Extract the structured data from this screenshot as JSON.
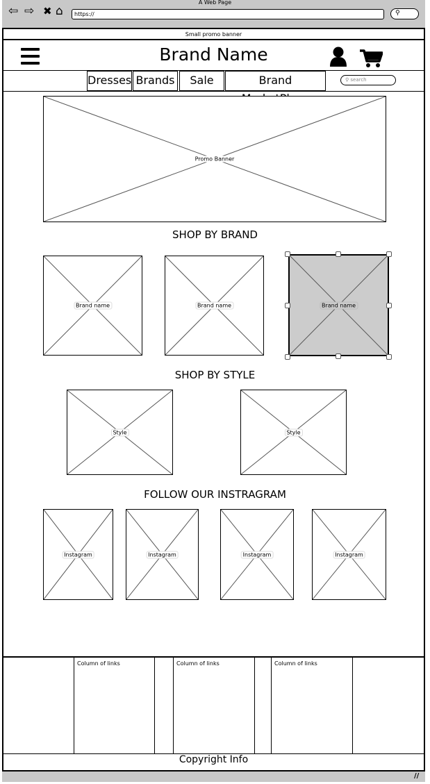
{
  "window": {
    "title": "A Web Page",
    "url": "https://"
  },
  "banner_strip": "Small promo banner",
  "header": {
    "brand": "Brand Name"
  },
  "nav": {
    "tabs": [
      "Dresses",
      "Brands",
      "Sale",
      "Brand MarketPlace"
    ],
    "search_placeholder": "search"
  },
  "promo": {
    "label": "Promo Banner"
  },
  "shop_by_brand": {
    "heading": "SHOP BY BRAND",
    "items": [
      "Brand name",
      "Brand name",
      "Brand name"
    ]
  },
  "shop_by_style": {
    "heading": "SHOP BY STYLE",
    "items": [
      "Style",
      "Style"
    ]
  },
  "instagram": {
    "heading": "FOLLOW OUR INSTRAGRAM",
    "items": [
      "Instagram",
      "Instagram",
      "Instagram",
      "Instagram"
    ]
  },
  "footer": {
    "columns": [
      "Column of links",
      "Column of links",
      "Column of links"
    ],
    "copyright": "Copyright Info"
  },
  "colors": {
    "chrome": "#c8c8c8",
    "selected_fill": "#cccccc",
    "stroke": "#555555"
  }
}
